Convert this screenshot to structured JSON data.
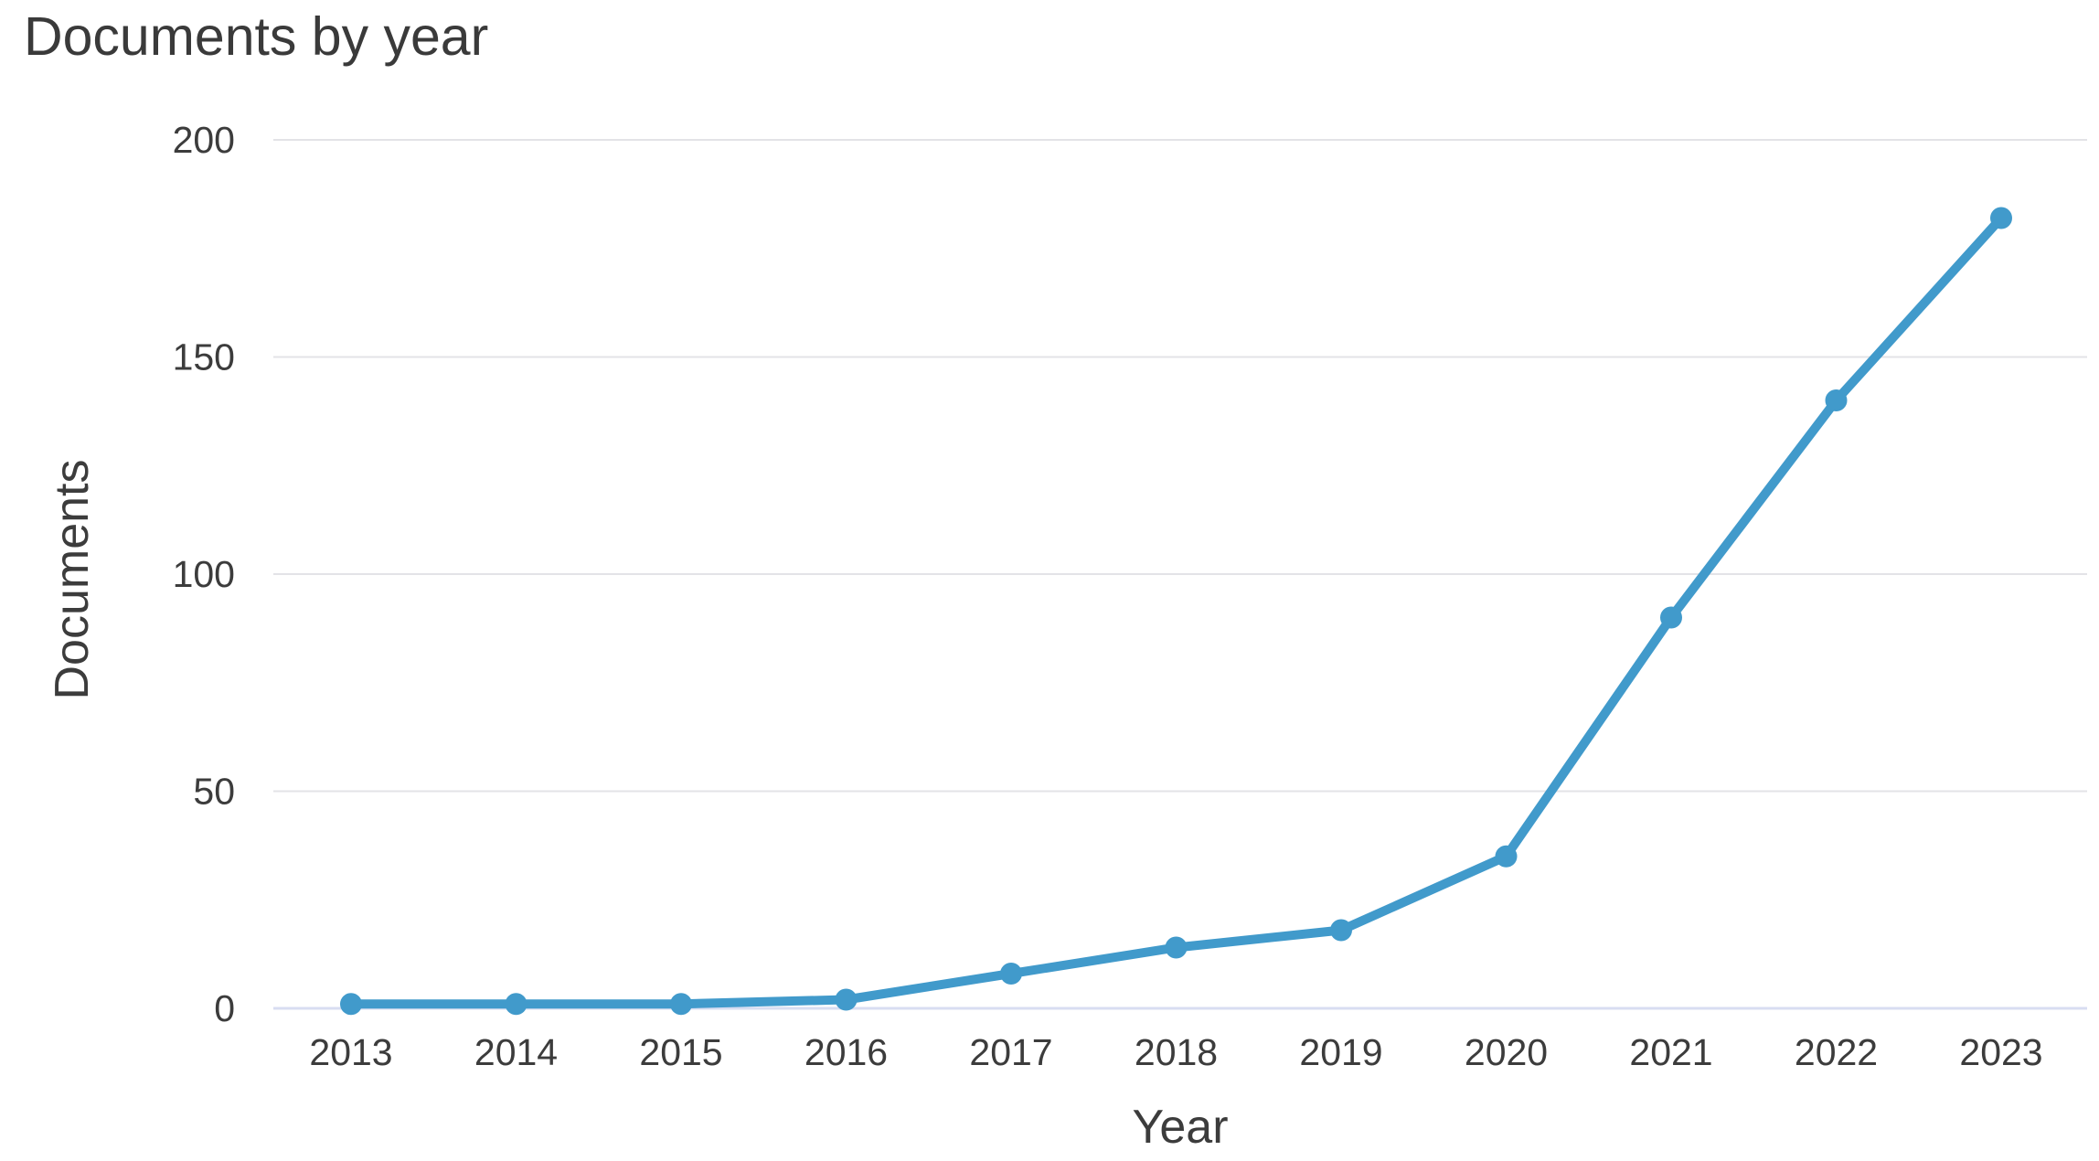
{
  "chart_data": {
    "type": "line",
    "title": "Documents by year",
    "xlabel": "Year",
    "ylabel": "Documents",
    "x": [
      2013,
      2014,
      2015,
      2016,
      2017,
      2018,
      2019,
      2020,
      2021,
      2022,
      2023
    ],
    "series": [
      {
        "name": "Documents",
        "values": [
          1,
          1,
          1,
          2,
          8,
          14,
          18,
          35,
          90,
          140,
          182
        ]
      }
    ],
    "ylim": [
      0,
      200
    ],
    "yticks": [
      0,
      50,
      100,
      150,
      200
    ],
    "grid": "horizontal",
    "legend": "none",
    "colors": {
      "line": "#419acb",
      "marker": "#419acb",
      "gridline": "#e3e3e7",
      "zero_line": "#d8ddf2",
      "text": "#3c3c3c",
      "background": "#ffffff"
    }
  }
}
